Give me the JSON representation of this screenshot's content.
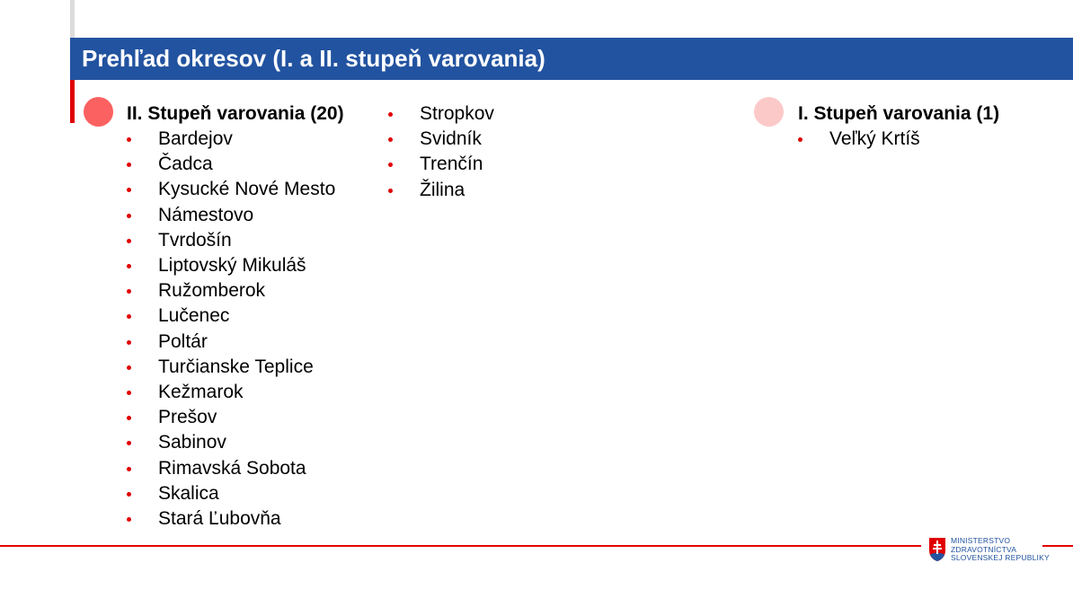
{
  "title": "Prehľad okresov (I. a II. stupeň varovania)",
  "colors": {
    "banner": "#2253a0",
    "accent_red": "#e00000",
    "level2_dot": "#fb6161",
    "level1_dot": "#fcc9c9"
  },
  "level2": {
    "heading": "II. Stupeň varovania (20)",
    "districts": [
      "Bardejov",
      "Čadca",
      "Kysucké Nové Mesto",
      "Námestovo",
      "Tvrdošín",
      "Liptovský Mikuláš",
      "Ružomberok",
      "Lučenec",
      "Poltár",
      "Turčianske Teplice",
      "Kežmarok",
      "Prešov",
      "Sabinov",
      "Rimavská Sobota",
      "Skalica",
      "Stará Ľubovňa",
      "Stropkov",
      "Svidník",
      "Trenčín",
      "Žilina"
    ]
  },
  "level1": {
    "heading": "I. Stupeň varovania (1)",
    "districts": [
      "Veľký Krtíš"
    ]
  },
  "logo": {
    "line1": "MINISTERSTVO",
    "line2": "ZDRAVOTNÍCTVA",
    "line3": "SLOVENSKEJ REPUBLIKY"
  }
}
